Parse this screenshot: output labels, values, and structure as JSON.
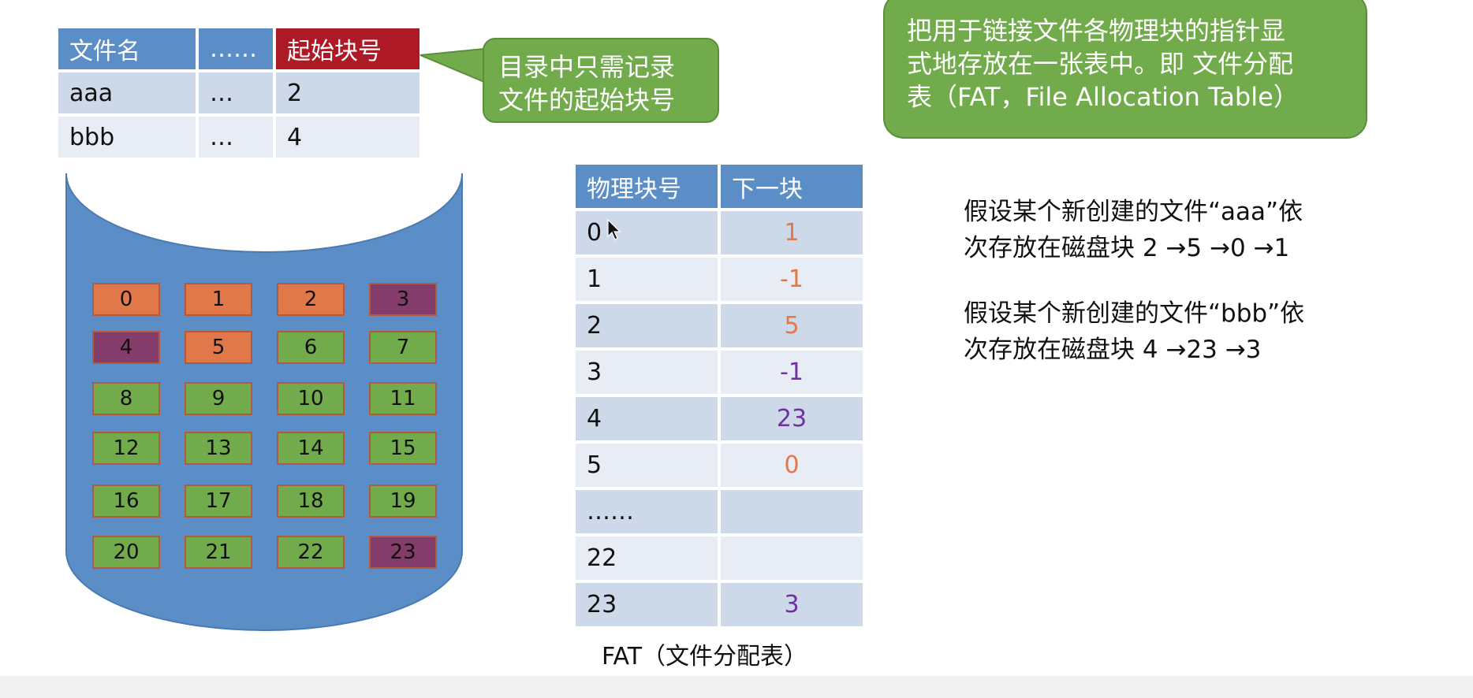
{
  "directory": {
    "headers": [
      "文件名",
      "……",
      "起始块号"
    ],
    "rows": [
      {
        "name": "aaa",
        "dots": "…",
        "start": "2"
      },
      {
        "name": "bbb",
        "dots": "…",
        "start": "4"
      }
    ]
  },
  "callout_directory": {
    "line1": "目录中只需记录",
    "line2": "文件的起始块号"
  },
  "callout_fat": {
    "line1": "把用于链接文件各物理块的指针显",
    "line2": "式地存放在一张表中。即 文件分配",
    "line3": "表（FAT，File Allocation Table）"
  },
  "disk_blocks": [
    {
      "label": "0",
      "color": "#e0784a"
    },
    {
      "label": "1",
      "color": "#e0784a"
    },
    {
      "label": "2",
      "color": "#e0784a"
    },
    {
      "label": "3",
      "color": "#843c6b"
    },
    {
      "label": "4",
      "color": "#843c6b"
    },
    {
      "label": "5",
      "color": "#e0784a"
    },
    {
      "label": "6",
      "color": "#72ab4b"
    },
    {
      "label": "7",
      "color": "#72ab4b"
    },
    {
      "label": "8",
      "color": "#72ab4b"
    },
    {
      "label": "9",
      "color": "#72ab4b"
    },
    {
      "label": "10",
      "color": "#72ab4b"
    },
    {
      "label": "11",
      "color": "#72ab4b"
    },
    {
      "label": "12",
      "color": "#72ab4b"
    },
    {
      "label": "13",
      "color": "#72ab4b"
    },
    {
      "label": "14",
      "color": "#72ab4b"
    },
    {
      "label": "15",
      "color": "#72ab4b"
    },
    {
      "label": "16",
      "color": "#72ab4b"
    },
    {
      "label": "17",
      "color": "#72ab4b"
    },
    {
      "label": "18",
      "color": "#72ab4b"
    },
    {
      "label": "19",
      "color": "#72ab4b"
    },
    {
      "label": "20",
      "color": "#72ab4b"
    },
    {
      "label": "21",
      "color": "#72ab4b"
    },
    {
      "label": "22",
      "color": "#72ab4b"
    },
    {
      "label": "23",
      "color": "#843c6b"
    }
  ],
  "fat": {
    "headers": [
      "物理块号",
      "下一块"
    ],
    "rows": [
      {
        "block": "0",
        "next": "1",
        "next_color": "orange"
      },
      {
        "block": "1",
        "next": "-1",
        "next_color": "orange"
      },
      {
        "block": "2",
        "next": "5",
        "next_color": "orange"
      },
      {
        "block": "3",
        "next": "-1",
        "next_color": "purple"
      },
      {
        "block": "4",
        "next": "23",
        "next_color": "purple"
      },
      {
        "block": "5",
        "next": "0",
        "next_color": "orange"
      },
      {
        "block": "……",
        "next": ""
      },
      {
        "block": "22",
        "next": ""
      },
      {
        "block": "23",
        "next": "3",
        "next_color": "purple"
      }
    ],
    "caption": "FAT（文件分配表）"
  },
  "notes": [
    {
      "line1": "假设某个新创建的文件“aaa”依",
      "line2": "次存放在磁盘块 2 →5 →0 →1"
    },
    {
      "line1": "假设某个新创建的文件“bbb”依",
      "line2": "次存放在磁盘块 4 →23 →3"
    }
  ],
  "colors": {
    "header_blue": "#5b8ec6",
    "header_red": "#ad1a26",
    "disk_blue": "#5b8ec6",
    "callout_green": "#72ab4b",
    "file_aaa": "#e0784a",
    "file_bbb": "#843c6b",
    "free": "#72ab4b"
  }
}
